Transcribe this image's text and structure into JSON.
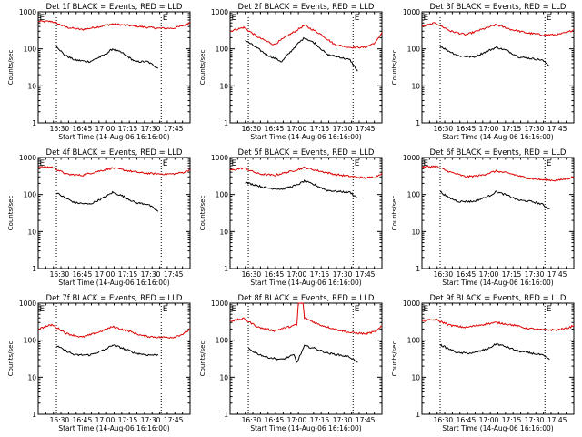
{
  "figure": {
    "colors": {
      "events": "#000000",
      "lld": "#dd0000",
      "axis": "#000000"
    }
  },
  "chart_data": [
    {
      "type": "line",
      "title": "Det 1f BLACK = Events, RED = LLD",
      "xlabel": "Start Time (14-Aug-06 16:16:00)",
      "ylabel": "Counts/sec",
      "yscale": "log",
      "ylim": [
        1,
        1000
      ],
      "xlim": [
        "16:16",
        "17:56"
      ],
      "x_ticks": [
        "16:30",
        "16:45",
        "17:00",
        "17:15",
        "17:30",
        "17:45"
      ],
      "y_ticks": [
        "1",
        "10",
        "100",
        "1000"
      ],
      "markers": [
        {
          "label": "E",
          "time": "16:16"
        },
        {
          "label": "E",
          "time": "17:37"
        }
      ],
      "vlines": [
        "16:28",
        "17:37"
      ],
      "series": [
        {
          "name": "LLD",
          "color": "#dd0000",
          "x": [
            "16:16",
            "16:25",
            "16:35",
            "16:45",
            "16:55",
            "17:05",
            "17:15",
            "17:25",
            "17:35",
            "17:45",
            "17:52",
            "17:56"
          ],
          "y": [
            550,
            550,
            380,
            330,
            390,
            470,
            430,
            390,
            360,
            360,
            430,
            520
          ]
        },
        {
          "name": "Events",
          "color": "#000000",
          "x": [
            "16:28",
            "16:33",
            "16:40",
            "16:50",
            "17:00",
            "17:05",
            "17:12",
            "17:20",
            "17:28",
            "17:35"
          ],
          "y": [
            120,
            70,
            50,
            45,
            70,
            100,
            75,
            45,
            45,
            30
          ]
        }
      ]
    },
    {
      "type": "line",
      "title": "Det 2f BLACK = Events, RED = LLD",
      "xlabel": "Start Time (14-Aug-06 16:16:00)",
      "ylabel": "Counts/sec",
      "yscale": "log",
      "ylim": [
        1,
        1000
      ],
      "xlim": [
        "16:16",
        "17:56"
      ],
      "x_ticks": [
        "16:30",
        "16:45",
        "17:00",
        "17:15",
        "17:30",
        "17:45"
      ],
      "y_ticks": [
        "1",
        "10",
        "100",
        "1000"
      ],
      "markers": [
        {
          "label": "E",
          "time": "16:16"
        },
        {
          "label": "E",
          "time": "17:37"
        }
      ],
      "vlines": [
        "16:28",
        "17:37"
      ],
      "series": [
        {
          "name": "LLD",
          "color": "#dd0000",
          "x": [
            "16:16",
            "16:25",
            "16:35",
            "16:45",
            "16:55",
            "17:05",
            "17:15",
            "17:25",
            "17:35",
            "17:45",
            "17:52",
            "17:56"
          ],
          "y": [
            300,
            380,
            200,
            130,
            240,
            430,
            260,
            130,
            110,
            110,
            150,
            280
          ]
        },
        {
          "name": "Events",
          "color": "#000000",
          "x": [
            "16:26",
            "16:33",
            "16:40",
            "16:50",
            "17:00",
            "17:05",
            "17:12",
            "17:20",
            "17:28",
            "17:35",
            "17:40"
          ],
          "y": [
            170,
            110,
            70,
            45,
            130,
            200,
            140,
            70,
            60,
            50,
            25
          ]
        }
      ]
    },
    {
      "type": "line",
      "title": "Det 3f BLACK = Events, RED = LLD",
      "xlabel": "Start Time (14-Aug-06 16:16:00)",
      "ylabel": "Counts/sec",
      "yscale": "log",
      "ylim": [
        1,
        1000
      ],
      "xlim": [
        "16:16",
        "17:56"
      ],
      "x_ticks": [
        "16:30",
        "16:45",
        "17:00",
        "17:15",
        "17:30",
        "17:45"
      ],
      "y_ticks": [
        "1",
        "10",
        "100",
        "1000"
      ],
      "markers": [
        {
          "label": "E",
          "time": "16:16"
        },
        {
          "label": "E",
          "time": "17:37"
        }
      ],
      "vlines": [
        "16:28",
        "17:37"
      ],
      "series": [
        {
          "name": "LLD",
          "color": "#dd0000",
          "x": [
            "16:16",
            "16:25",
            "16:35",
            "16:45",
            "16:55",
            "17:05",
            "17:15",
            "17:25",
            "17:35",
            "17:45",
            "17:52",
            "17:56"
          ],
          "y": [
            400,
            500,
            300,
            240,
            330,
            450,
            330,
            270,
            240,
            240,
            280,
            330
          ]
        },
        {
          "name": "Events",
          "color": "#000000",
          "x": [
            "16:28",
            "16:33",
            "16:40",
            "16:50",
            "17:00",
            "17:05",
            "17:12",
            "17:20",
            "17:28",
            "17:35",
            "17:40"
          ],
          "y": [
            120,
            90,
            65,
            60,
            90,
            110,
            90,
            60,
            55,
            50,
            35
          ]
        }
      ]
    },
    {
      "type": "line",
      "title": "Det 4f BLACK = Events, RED = LLD",
      "xlabel": "Start Time (14-Aug-06 16:16:00)",
      "ylabel": "Counts/sec",
      "yscale": "log",
      "ylim": [
        1,
        1000
      ],
      "xlim": [
        "16:16",
        "17:56"
      ],
      "x_ticks": [
        "16:30",
        "16:45",
        "17:00",
        "17:15",
        "17:30",
        "17:45"
      ],
      "y_ticks": [
        "1",
        "10",
        "100",
        "1000"
      ],
      "markers": [
        {
          "label": "E",
          "time": "16:16"
        },
        {
          "label": "E",
          "time": "17:37"
        }
      ],
      "vlines": [
        "16:28",
        "17:37"
      ],
      "series": [
        {
          "name": "LLD",
          "color": "#dd0000",
          "x": [
            "16:16",
            "16:25",
            "16:35",
            "16:45",
            "16:55",
            "17:05",
            "17:15",
            "17:25",
            "17:35",
            "17:45",
            "17:52",
            "17:56"
          ],
          "y": [
            550,
            550,
            350,
            330,
            420,
            520,
            440,
            380,
            360,
            360,
            400,
            470
          ]
        },
        {
          "name": "Events",
          "color": "#000000",
          "x": [
            "16:28",
            "16:33",
            "16:40",
            "16:50",
            "17:00",
            "17:05",
            "17:12",
            "17:20",
            "17:28",
            "17:35"
          ],
          "y": [
            110,
            85,
            60,
            55,
            85,
            115,
            90,
            60,
            55,
            35
          ]
        }
      ]
    },
    {
      "type": "line",
      "title": "Det 5f BLACK = Events, RED = LLD",
      "xlabel": "Start Time (14-Aug-06 16:16:00)",
      "ylabel": "Counts/sec",
      "yscale": "log",
      "ylim": [
        1,
        1000
      ],
      "xlim": [
        "16:16",
        "17:56"
      ],
      "x_ticks": [
        "16:30",
        "16:45",
        "17:00",
        "17:15",
        "17:30",
        "17:45"
      ],
      "y_ticks": [
        "1",
        "10",
        "100",
        "1000"
      ],
      "markers": [
        {
          "label": "E",
          "time": "16:16"
        },
        {
          "label": "E",
          "time": "17:37"
        }
      ],
      "vlines": [
        "16:28",
        "17:37"
      ],
      "series": [
        {
          "name": "LLD",
          "color": "#dd0000",
          "x": [
            "16:16",
            "16:25",
            "16:35",
            "16:45",
            "16:55",
            "17:05",
            "17:15",
            "17:25",
            "17:35",
            "17:45",
            "17:52",
            "17:56"
          ],
          "y": [
            450,
            520,
            360,
            330,
            410,
            530,
            430,
            350,
            310,
            280,
            300,
            380
          ]
        },
        {
          "name": "Events",
          "color": "#000000",
          "x": [
            "16:26",
            "16:33",
            "16:40",
            "16:50",
            "17:00",
            "17:05",
            "17:12",
            "17:20",
            "17:28",
            "17:35",
            "17:40"
          ],
          "y": [
            210,
            180,
            150,
            140,
            180,
            230,
            180,
            130,
            120,
            115,
            80
          ]
        }
      ]
    },
    {
      "type": "line",
      "title": "Det 6f BLACK = Events, RED = LLD",
      "xlabel": "Start Time (14-Aug-06 16:16:00)",
      "ylabel": "Counts/sec",
      "yscale": "log",
      "ylim": [
        1,
        1000
      ],
      "xlim": [
        "16:16",
        "17:56"
      ],
      "x_ticks": [
        "16:30",
        "16:45",
        "17:00",
        "17:15",
        "17:30",
        "17:45"
      ],
      "y_ticks": [
        "1",
        "10",
        "100",
        "1000"
      ],
      "markers": [
        {
          "label": "E",
          "time": "16:16"
        },
        {
          "label": "E",
          "time": "17:37"
        }
      ],
      "vlines": [
        "16:28",
        "17:37"
      ],
      "series": [
        {
          "name": "LLD",
          "color": "#dd0000",
          "x": [
            "16:16",
            "16:25",
            "16:35",
            "16:45",
            "16:55",
            "17:05",
            "17:15",
            "17:25",
            "17:35",
            "17:45",
            "17:52",
            "17:56"
          ],
          "y": [
            550,
            580,
            400,
            300,
            330,
            430,
            360,
            280,
            250,
            240,
            270,
            300
          ]
        },
        {
          "name": "Events",
          "color": "#000000",
          "x": [
            "16:28",
            "16:33",
            "16:40",
            "16:50",
            "17:00",
            "17:05",
            "17:12",
            "17:20",
            "17:28",
            "17:35",
            "17:40"
          ],
          "y": [
            120,
            85,
            65,
            65,
            90,
            120,
            95,
            70,
            65,
            55,
            40
          ]
        }
      ]
    },
    {
      "type": "line",
      "title": "Det 7f BLACK = Events, RED = LLD",
      "xlabel": "Start Time (14-Aug-06 16:16:00)",
      "ylabel": "Counts/sec",
      "yscale": "log",
      "ylim": [
        1,
        1000
      ],
      "xlim": [
        "16:16",
        "17:56"
      ],
      "x_ticks": [
        "16:30",
        "16:45",
        "17:00",
        "17:15",
        "17:30",
        "17:45"
      ],
      "y_ticks": [
        "1",
        "10",
        "100",
        "1000"
      ],
      "markers": [
        {
          "label": "E",
          "time": "16:16"
        },
        {
          "label": "E",
          "time": "17:37"
        }
      ],
      "vlines": [
        "16:28",
        "17:37"
      ],
      "series": [
        {
          "name": "LLD",
          "color": "#dd0000",
          "x": [
            "16:16",
            "16:25",
            "16:35",
            "16:45",
            "16:55",
            "17:05",
            "17:15",
            "17:25",
            "17:35",
            "17:45",
            "17:52",
            "17:56"
          ],
          "y": [
            200,
            260,
            150,
            120,
            160,
            230,
            180,
            130,
            120,
            120,
            150,
            200
          ]
        },
        {
          "name": "Events",
          "color": "#000000",
          "x": [
            "16:28",
            "16:33",
            "16:40",
            "16:50",
            "17:00",
            "17:05",
            "17:12",
            "17:20",
            "17:28",
            "17:35"
          ],
          "y": [
            70,
            55,
            40,
            40,
            55,
            75,
            60,
            45,
            40,
            40
          ]
        }
      ]
    },
    {
      "type": "line",
      "title": "Det 8f BLACK = Events, RED = LLD",
      "xlabel": "Start Time (14-Aug-06 16:16:00)",
      "ylabel": "Counts/sec",
      "yscale": "log",
      "ylim": [
        1,
        1000
      ],
      "xlim": [
        "16:16",
        "17:56"
      ],
      "x_ticks": [
        "16:30",
        "16:45",
        "17:00",
        "17:15",
        "17:30",
        "17:45"
      ],
      "y_ticks": [
        "1",
        "10",
        "100",
        "1000"
      ],
      "markers": [
        {
          "label": "E",
          "time": "16:16"
        },
        {
          "label": "E",
          "time": "17:37"
        }
      ],
      "vlines": [
        "16:28",
        "17:37"
      ],
      "series": [
        {
          "name": "LLD",
          "color": "#dd0000",
          "x": [
            "16:16",
            "16:25",
            "16:35",
            "16:45",
            "16:55",
            "17:00",
            "17:01",
            "17:04",
            "17:05",
            "17:15",
            "17:25",
            "17:35",
            "17:45",
            "17:52",
            "17:56"
          ],
          "y": [
            330,
            380,
            220,
            180,
            230,
            260,
            1000,
            1000,
            400,
            260,
            200,
            160,
            150,
            170,
            240
          ]
        },
        {
          "name": "Events",
          "color": "#000000",
          "x": [
            "16:28",
            "16:33",
            "16:40",
            "16:50",
            "16:58",
            "17:00",
            "17:05",
            "17:12",
            "17:20",
            "17:28",
            "17:35",
            "17:40"
          ],
          "y": [
            60,
            45,
            35,
            30,
            40,
            25,
            70,
            60,
            45,
            40,
            35,
            25
          ]
        }
      ]
    },
    {
      "type": "line",
      "title": "Det 9f BLACK = Events, RED = LLD",
      "xlabel": "Start Time (14-Aug-06 16:16:00)",
      "ylabel": "Counts/sec",
      "yscale": "log",
      "ylim": [
        1,
        1000
      ],
      "xlim": [
        "16:16",
        "17:56"
      ],
      "x_ticks": [
        "16:30",
        "16:45",
        "17:00",
        "17:15",
        "17:30",
        "17:45"
      ],
      "y_ticks": [
        "1",
        "10",
        "100",
        "1000"
      ],
      "markers": [
        {
          "label": "E",
          "time": "16:16"
        },
        {
          "label": "E",
          "time": "17:37"
        }
      ],
      "vlines": [
        "16:28",
        "17:37"
      ],
      "series": [
        {
          "name": "LLD",
          "color": "#dd0000",
          "x": [
            "16:16",
            "16:25",
            "16:35",
            "16:45",
            "16:55",
            "17:05",
            "17:15",
            "17:25",
            "17:35",
            "17:45",
            "17:52",
            "17:56"
          ],
          "y": [
            330,
            360,
            250,
            220,
            260,
            300,
            260,
            210,
            190,
            190,
            210,
            250
          ]
        },
        {
          "name": "Events",
          "color": "#000000",
          "x": [
            "16:28",
            "16:33",
            "16:40",
            "16:50",
            "17:00",
            "17:05",
            "17:12",
            "17:20",
            "17:28",
            "17:35",
            "17:40"
          ],
          "y": [
            75,
            60,
            45,
            45,
            60,
            80,
            65,
            50,
            45,
            40,
            30
          ]
        }
      ]
    }
  ]
}
